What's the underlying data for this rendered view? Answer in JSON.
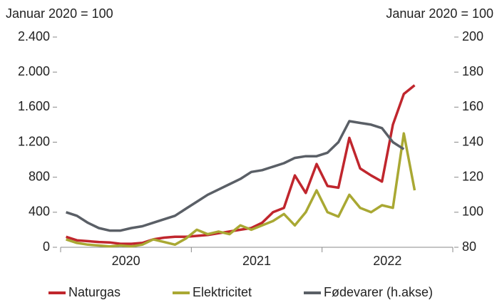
{
  "chart_data": {
    "type": "line",
    "ylabel": "Januar 2020 = 100",
    "y2label": "Januar 2020 = 100",
    "categories": [
      null,
      null,
      null,
      null,
      null,
      null,
      "2020",
      null,
      null,
      null,
      null,
      null,
      null,
      null,
      null,
      null,
      null,
      null,
      "2021",
      null,
      null,
      null,
      null,
      null,
      null,
      null,
      null,
      null,
      null,
      null,
      "2022",
      null,
      null,
      null,
      null,
      null
    ],
    "series": [
      {
        "name": "Naturgas",
        "color": "#c0262d",
        "values": [
          120,
          80,
          70,
          60,
          55,
          40,
          40,
          50,
          90,
          110,
          120,
          120,
          130,
          140,
          160,
          180,
          200,
          220,
          280,
          400,
          450,
          820,
          620,
          950,
          700,
          680,
          1250,
          900,
          820,
          750,
          1400,
          1750,
          1850,
          null,
          null,
          null
        ]
      },
      {
        "name": "Elektricitet",
        "color": "#a9a833",
        "values": [
          90,
          50,
          30,
          20,
          10,
          20,
          10,
          30,
          90,
          60,
          30,
          100,
          200,
          150,
          180,
          150,
          250,
          200,
          250,
          300,
          380,
          250,
          400,
          650,
          400,
          350,
          600,
          450,
          400,
          480,
          450,
          1300,
          650,
          null,
          null,
          null
        ]
      },
      {
        "name": "Fødevarer (h.akse)",
        "color": "#5a5f66",
        "axis": "y2",
        "values": [
          100,
          98,
          94,
          91,
          89.5,
          89.5,
          91,
          92,
          94,
          96,
          98,
          102,
          106,
          110,
          113,
          116,
          119,
          123,
          124,
          126,
          128,
          131,
          132,
          132,
          134,
          140,
          152,
          151,
          150,
          148,
          140,
          136,
          null,
          null,
          null,
          null
        ]
      }
    ],
    "ylim": [
      0,
      2400
    ],
    "yticks": [
      0,
      400,
      800,
      {
        "value": 1200,
        "label": "1.200"
      },
      {
        "value": 1600,
        "label": "1.600"
      },
      {
        "value": 2000,
        "label": "2.000"
      },
      {
        "value": 2400,
        "label": "2.400"
      }
    ],
    "y2lim": [
      80,
      200
    ],
    "y2ticks": [
      80,
      100,
      120,
      140,
      160,
      180,
      200
    ],
    "grid": false,
    "legend": "bottom"
  }
}
